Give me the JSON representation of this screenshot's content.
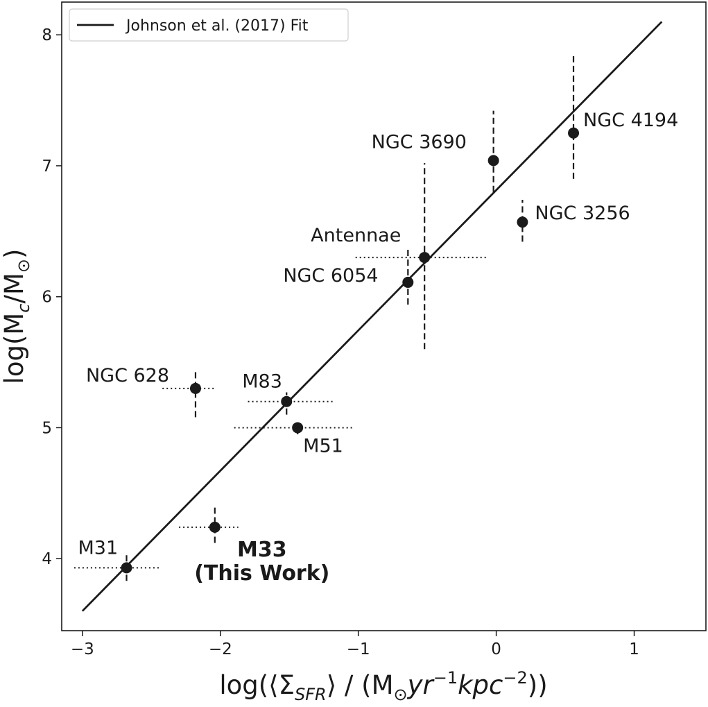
{
  "chart_data": {
    "type": "scatter",
    "xlabel_parts": {
      "a": "log(⟨Σ",
      "a_sub": "SFR",
      "b": "⟩ / (M",
      "b_sub": "⊙",
      "c": "yr",
      "c_sup": "−1",
      "d": "kpc",
      "d_sup": "−2",
      "e": "))"
    },
    "ylabel_parts": {
      "a": "log(M",
      "a_sub": "c",
      "b": "/M",
      "b_sub": "⊙",
      "c": ")"
    },
    "xlim": [
      -3.15,
      1.52
    ],
    "ylim": [
      3.45,
      8.25
    ],
    "xticks": [
      -3,
      -2,
      -1,
      0,
      1
    ],
    "xtick_labels": [
      "−3",
      "−2",
      "−1",
      "0",
      "1"
    ],
    "yticks": [
      4,
      5,
      6,
      7,
      8
    ],
    "ytick_labels": [
      "4",
      "5",
      "6",
      "7",
      "8"
    ],
    "grid": false,
    "legend": {
      "placement": "top-left",
      "entries": [
        {
          "label": "Johnson et al. (2017) Fit",
          "style": "solid-line"
        }
      ]
    },
    "fit_line": {
      "x": [
        -3.0,
        1.2
      ],
      "y": [
        3.6,
        8.1
      ]
    },
    "points": [
      {
        "name": "M31",
        "x": -2.68,
        "y": 3.93,
        "xerr": [
          0.38,
          0.25
        ],
        "yerr": [
          0.1,
          0.1
        ],
        "x_style": "dotted",
        "y_style": "dashed"
      },
      {
        "name": "M33",
        "sub": "(This Work)",
        "bold": true,
        "x": -2.04,
        "y": 4.24,
        "xerr": [
          0.26,
          0.17
        ],
        "yerr": [
          0.12,
          0.15
        ],
        "x_style": "dotted",
        "y_style": "dashed"
      },
      {
        "name": "NGC 628",
        "x": -2.18,
        "y": 5.3,
        "xerr": [
          0.24,
          0.15
        ],
        "yerr": [
          0.22,
          0.13
        ],
        "x_style": "dotted",
        "y_style": "dashed"
      },
      {
        "name": "M83",
        "x": -1.52,
        "y": 5.2,
        "xerr": [
          0.28,
          0.35
        ],
        "yerr": [
          0.1,
          0.07
        ],
        "x_style": "dotted",
        "y_style": "dashed"
      },
      {
        "name": "M51",
        "x": -1.44,
        "y": 5.0,
        "xerr": [
          0.46,
          0.4
        ],
        "yerr": [
          0.05,
          0.04
        ],
        "x_style": "dotted",
        "y_style": "dashed"
      },
      {
        "name": "NGC 6054",
        "x": -0.64,
        "y": 6.11,
        "xerr": [
          0.0,
          0.0
        ],
        "yerr": [
          0.17,
          0.25
        ],
        "x_style": "dotted",
        "y_style": "dashed"
      },
      {
        "name": "Antennae",
        "x": -0.52,
        "y": 6.3,
        "xerr": [
          0.5,
          0.45
        ],
        "yerr": [
          0.7,
          0.72
        ],
        "x_style": "dotted",
        "y_style": "dashed"
      },
      {
        "name": "NGC 3690",
        "x": -0.02,
        "y": 7.04,
        "xerr": [
          0.0,
          0.0
        ],
        "yerr": [
          0.24,
          0.38
        ],
        "x_style": "dotted",
        "y_style": "dashed"
      },
      {
        "name": "NGC 3256",
        "x": 0.19,
        "y": 6.57,
        "xerr": [
          0.0,
          0.0
        ],
        "yerr": [
          0.15,
          0.17
        ],
        "x_style": "dotted",
        "y_style": "dashed"
      },
      {
        "name": "NGC 4194",
        "x": 0.56,
        "y": 7.25,
        "xerr": [
          0.0,
          0.0
        ],
        "yerr": [
          0.35,
          0.6
        ],
        "x_style": "dotted",
        "y_style": "dashed"
      }
    ]
  }
}
